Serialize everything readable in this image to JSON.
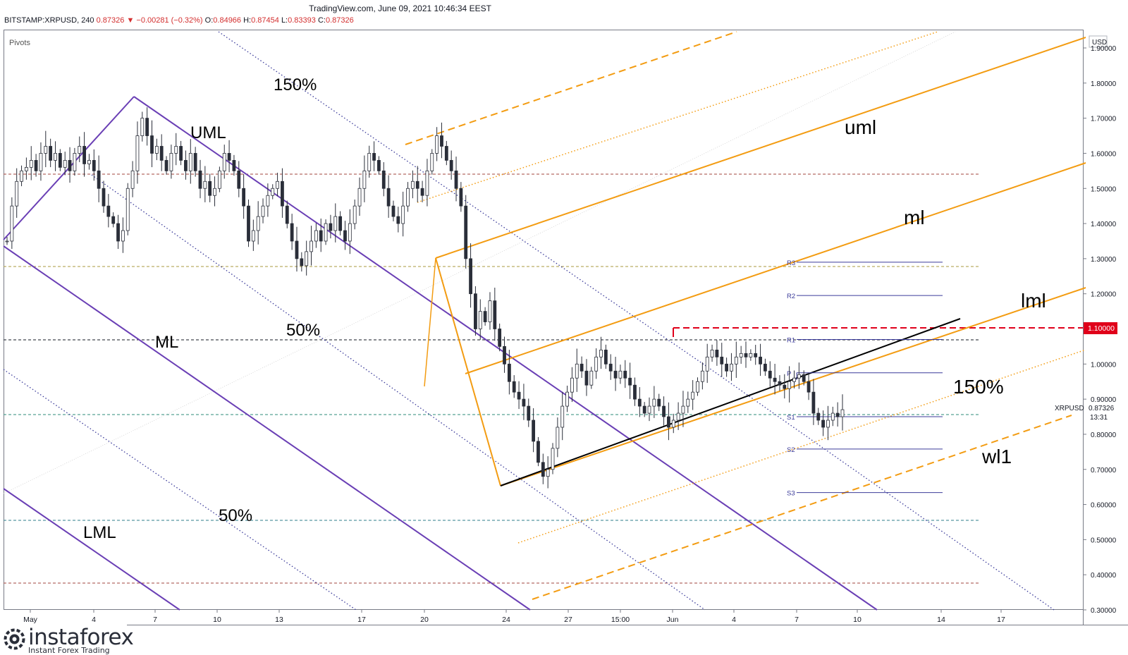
{
  "header": {
    "site": "TradingView.com, June 09, 2021 10:46:34 EEST",
    "symbol": "BITSTAMP:XRPUSD, 240",
    "last": "0.87326",
    "arrow": "▼",
    "change": "−0.00281 (−0.32%)",
    "o_label": "O:",
    "o": "0.84966",
    "h_label": "H:",
    "h": "0.87454",
    "l_label": "L:",
    "l": "0.83393",
    "c_label": "C:",
    "c": "0.87326"
  },
  "indicator_label": "Pivots",
  "currency": "USD",
  "price_tag": {
    "label": "XRPUSD",
    "value": "0.87326",
    "countdown": "13:31"
  },
  "level_tag": "1.10000",
  "logo": {
    "name": "instaforex",
    "tagline": "Instant Forex Trading"
  },
  "colors": {
    "orange": "#f39c12",
    "purple": "#6a3fb5",
    "black": "#000000",
    "red": "#e0001a"
  },
  "chart_data": {
    "type": "candlestick",
    "y_axis": {
      "min": 0.3,
      "max": 1.9,
      "ticks": [
        "1.90000",
        "1.80000",
        "1.70000",
        "1.60000",
        "1.50000",
        "1.40000",
        "1.30000",
        "1.20000",
        "1.10000",
        "1.00000",
        "0.90000",
        "0.80000",
        "0.70000",
        "0.60000",
        "0.50000",
        "0.40000",
        "0.30000"
      ]
    },
    "x_ticks": [
      "May",
      "4",
      "7",
      "10",
      "13",
      "17",
      "20",
      "24",
      "27",
      "15:00",
      "Jun",
      "4",
      "7",
      "10",
      "14",
      "17"
    ],
    "annotations": [
      "150%",
      "UML",
      "50%",
      "ML",
      "50%",
      "LML",
      "uml",
      "ml",
      "lml",
      "150%",
      "wl1"
    ],
    "pivots": [
      {
        "name": "R3",
        "value": 1.29
      },
      {
        "name": "R2",
        "value": 1.195
      },
      {
        "name": "R1",
        "value": 1.07
      },
      {
        "name": "P",
        "value": 0.975
      },
      {
        "name": "S1",
        "value": 0.85
      },
      {
        "name": "S2",
        "value": 0.758
      },
      {
        "name": "S3",
        "value": 0.634
      }
    ],
    "horizontal_levels": [
      1.54,
      1.28,
      1.07,
      0.85,
      0.55,
      0.37,
      1.1
    ],
    "close_series": [
      1.35,
      1.45,
      1.52,
      1.55,
      1.56,
      1.58,
      1.55,
      1.6,
      1.62,
      1.58,
      1.6,
      1.56,
      1.58,
      1.55,
      1.6,
      1.62,
      1.57,
      1.58,
      1.55,
      1.5,
      1.45,
      1.42,
      1.4,
      1.35,
      1.38,
      1.5,
      1.55,
      1.65,
      1.7,
      1.65,
      1.6,
      1.62,
      1.58,
      1.55,
      1.6,
      1.62,
      1.58,
      1.55,
      1.6,
      1.55,
      1.5,
      1.52,
      1.48,
      1.5,
      1.55,
      1.6,
      1.58,
      1.55,
      1.5,
      1.45,
      1.35,
      1.38,
      1.42,
      1.45,
      1.48,
      1.5,
      1.52,
      1.45,
      1.4,
      1.35,
      1.3,
      1.28,
      1.32,
      1.35,
      1.38,
      1.35,
      1.4,
      1.38,
      1.42,
      1.38,
      1.35,
      1.4,
      1.45,
      1.5,
      1.55,
      1.6,
      1.58,
      1.55,
      1.5,
      1.45,
      1.42,
      1.4,
      1.45,
      1.5,
      1.52,
      1.5,
      1.48,
      1.55,
      1.6,
      1.65,
      1.62,
      1.58,
      1.55,
      1.5,
      1.45,
      1.3,
      1.2,
      1.1,
      1.15,
      1.12,
      1.18,
      1.1,
      1.05,
      1.0,
      0.95,
      0.92,
      0.9,
      0.88,
      0.84,
      0.78,
      0.72,
      0.68,
      0.7,
      0.76,
      0.82,
      0.88,
      0.92,
      0.96,
      1.0,
      0.98,
      0.94,
      0.98,
      1.02,
      1.04,
      1.0,
      0.98,
      0.96,
      0.98,
      0.96,
      0.94,
      0.9,
      0.88,
      0.86,
      0.88,
      0.9,
      0.88,
      0.85,
      0.82,
      0.84,
      0.86,
      0.88,
      0.9,
      0.92,
      0.95,
      0.98,
      1.02,
      1.04,
      1.02,
      1.0,
      0.98,
      1.0,
      1.02,
      1.03,
      1.02,
      1.03,
      1.02,
      1.0,
      0.98,
      0.96,
      0.95,
      0.94,
      0.93,
      0.95,
      0.96,
      0.97,
      0.95,
      0.92,
      0.86,
      0.84,
      0.82,
      0.84,
      0.86,
      0.85,
      0.87
    ]
  }
}
